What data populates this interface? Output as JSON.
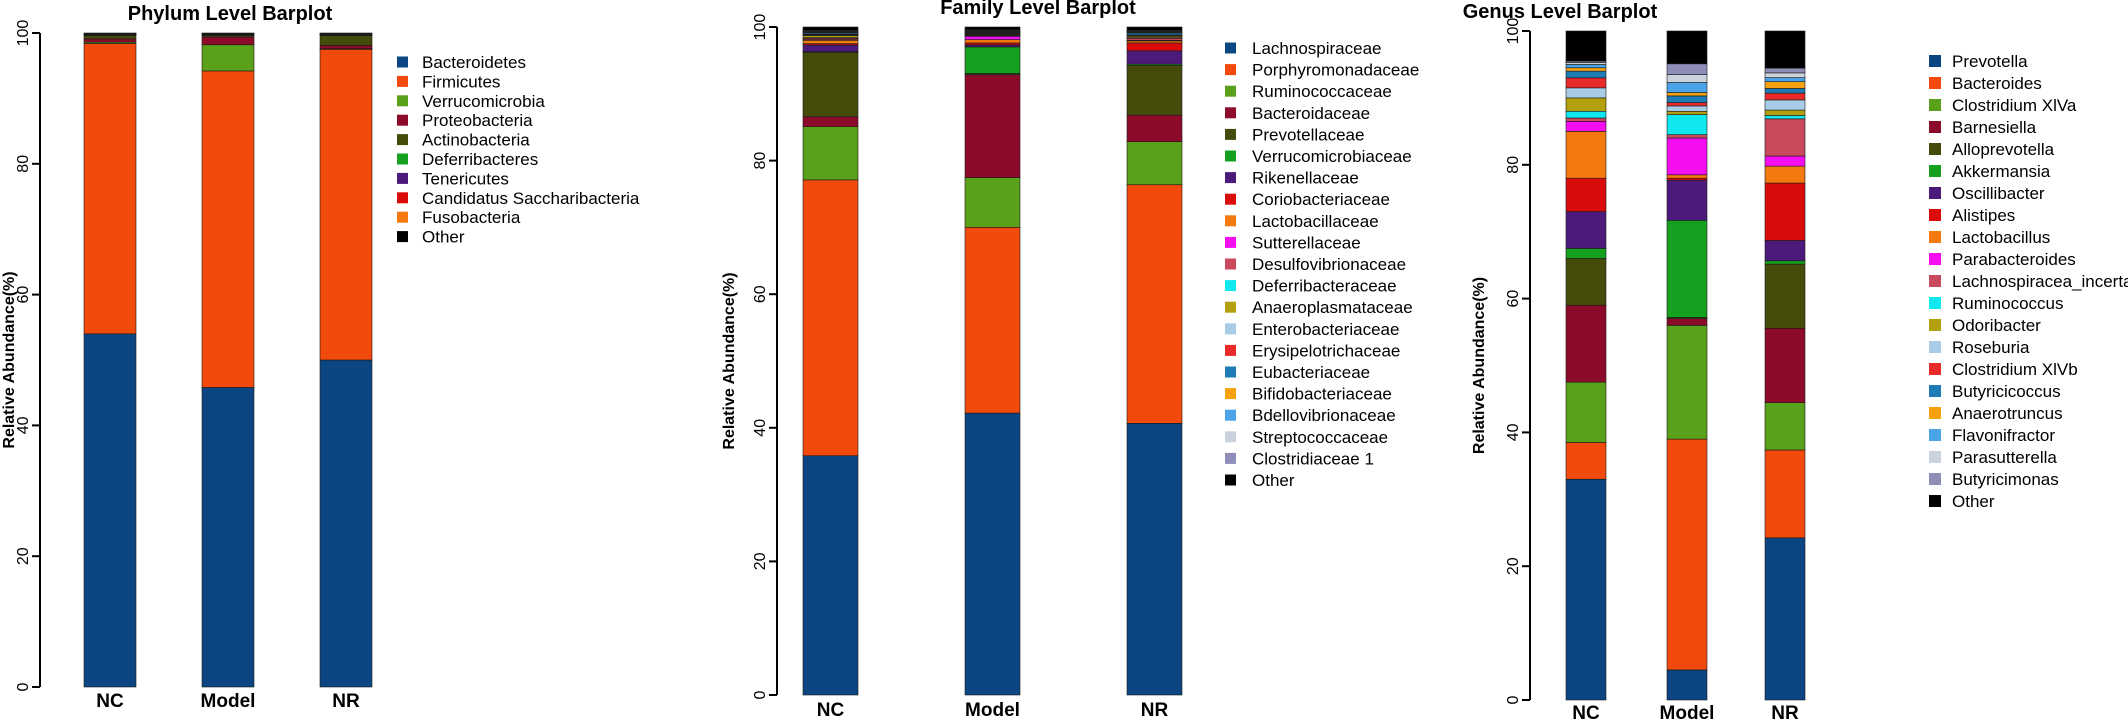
{
  "chart_data": [
    {
      "type": "bar",
      "stacked": true,
      "title": "Phylum Level Barplot",
      "ylabel": "Relative Abundance(%)",
      "ylim": [
        0,
        100
      ],
      "yticks": [
        0,
        20,
        40,
        60,
        80,
        100
      ],
      "categories": [
        "NC",
        "Model",
        "NR"
      ],
      "legend_position": "right",
      "series": [
        {
          "name": "Bacteroidetes",
          "color": "#0b4682",
          "values": [
            54.0,
            45.8,
            50.0
          ]
        },
        {
          "name": "Firmicutes",
          "color": "#f24a0c",
          "values": [
            44.4,
            48.4,
            47.5
          ]
        },
        {
          "name": "Verrucomicrobia",
          "color": "#5aa11b",
          "values": [
            0.2,
            4.0,
            0.1
          ]
        },
        {
          "name": "Proteobacteria",
          "color": "#8c0b2a",
          "values": [
            0.5,
            1.2,
            0.5
          ]
        },
        {
          "name": "Actinobacteria",
          "color": "#454c0b",
          "values": [
            0.5,
            0.2,
            1.5
          ]
        },
        {
          "name": "Deferribacteres",
          "color": "#16a01f",
          "values": [
            0.1,
            0.1,
            0.1
          ]
        },
        {
          "name": "Tenericutes",
          "color": "#4b1a7a",
          "values": [
            0.1,
            0.1,
            0.1
          ]
        },
        {
          "name": "Candidatus Saccharibacteria",
          "color": "#d90b0b",
          "values": [
            0.1,
            0.1,
            0.1
          ]
        },
        {
          "name": "Fusobacteria",
          "color": "#f47a10",
          "values": [
            0.05,
            0.05,
            0.05
          ]
        },
        {
          "name": "Other",
          "color": "#000000",
          "values": [
            0.05,
            0.05,
            0.05
          ]
        }
      ]
    },
    {
      "type": "bar",
      "stacked": true,
      "title": "Family Level Barplot",
      "ylabel": "Relative Abundance(%)",
      "ylim": [
        0,
        100
      ],
      "yticks": [
        0,
        20,
        40,
        60,
        80,
        100
      ],
      "categories": [
        "NC",
        "Model",
        "NR"
      ],
      "legend_position": "right",
      "series": [
        {
          "name": "Lachnospiraceae",
          "color": "#0b4682",
          "values": [
            36.0,
            42.5,
            41.0
          ]
        },
        {
          "name": "Porphyromonadaceae",
          "color": "#f24a0c",
          "values": [
            41.5,
            28.0,
            36.0
          ]
        },
        {
          "name": "Ruminococcaceae",
          "color": "#5aa11b",
          "values": [
            8.0,
            7.5,
            6.5
          ]
        },
        {
          "name": "Bacteroidaceae",
          "color": "#8c0b2a",
          "values": [
            1.5,
            15.5,
            4.0
          ]
        },
        {
          "name": "Prevotellaceae",
          "color": "#454c0b",
          "values": [
            9.7,
            0.2,
            7.5
          ]
        },
        {
          "name": "Verrucomicrobiaceae",
          "color": "#16a01f",
          "values": [
            0.1,
            4.0,
            0.2
          ]
        },
        {
          "name": "Rikenellaceae",
          "color": "#4b1a7a",
          "values": [
            1.0,
            0.3,
            2.0
          ]
        },
        {
          "name": "Coriobacteriaceae",
          "color": "#d90b0b",
          "values": [
            0.2,
            0.3,
            1.2
          ]
        },
        {
          "name": "Lactobacillaceae",
          "color": "#f47a10",
          "values": [
            0.5,
            0.5,
            0.3
          ]
        },
        {
          "name": "Sutterellaceae",
          "color": "#f50ff0",
          "values": [
            0.1,
            0.5,
            0.1
          ]
        },
        {
          "name": "Desulfovibrionaceae",
          "color": "#c94a5d",
          "values": [
            0.2,
            0.1,
            0.3
          ]
        },
        {
          "name": "Deferribacteraceae",
          "color": "#10e8ef",
          "values": [
            0.1,
            0.1,
            0.1
          ]
        },
        {
          "name": "Anaeroplasmataceae",
          "color": "#b3a00e",
          "values": [
            0.3,
            0.1,
            0.2
          ]
        },
        {
          "name": "Enterobacteriaceae",
          "color": "#a8cce8",
          "values": [
            0.1,
            0.1,
            0.1
          ]
        },
        {
          "name": "Erysipelotrichaceae",
          "color": "#e82a2a",
          "values": [
            0.1,
            0.1,
            0.1
          ]
        },
        {
          "name": "Eubacteriaceae",
          "color": "#1d7bb5",
          "values": [
            0.2,
            0.1,
            0.3
          ]
        },
        {
          "name": "Bifidobacteriaceae",
          "color": "#f7a10e",
          "values": [
            0.1,
            0.1,
            0.1
          ]
        },
        {
          "name": "Bdellovibrionaceae",
          "color": "#4ba3e8",
          "values": [
            0.1,
            0.1,
            0.1
          ]
        },
        {
          "name": "Streptococcaceae",
          "color": "#c9d2dd",
          "values": [
            0.1,
            0.1,
            0.1
          ]
        },
        {
          "name": "Clostridiaceae 1",
          "color": "#8e8eb8",
          "values": [
            0.1,
            0.1,
            0.1
          ]
        },
        {
          "name": "Other",
          "color": "#000000",
          "values": [
            0.5,
            0.4,
            0.5
          ]
        }
      ]
    },
    {
      "type": "bar",
      "stacked": true,
      "title": "Genus Level Barplot",
      "ylabel": "Relative Abundance(%)",
      "ylim": [
        0,
        100
      ],
      "yticks": [
        0,
        20,
        40,
        60,
        80,
        100
      ],
      "categories": [
        "NC",
        "Model",
        "NR"
      ],
      "legend_position": "right",
      "series": [
        {
          "name": "Prevotella",
          "color": "#0b4682",
          "values": [
            33.0,
            4.5,
            24.0
          ]
        },
        {
          "name": "Bacteroides",
          "color": "#f24a0c",
          "values": [
            5.5,
            34.5,
            13.0
          ]
        },
        {
          "name": "Clostridium XlVa",
          "color": "#5aa11b",
          "values": [
            9.0,
            17.0,
            7.0
          ]
        },
        {
          "name": "Barnesiella",
          "color": "#8c0b2a",
          "values": [
            11.5,
            1.0,
            11.0
          ]
        },
        {
          "name": "Alloprevotella",
          "color": "#454c0b",
          "values": [
            7.0,
            0.2,
            9.5
          ]
        },
        {
          "name": "Akkermansia",
          "color": "#16a01f",
          "values": [
            1.5,
            14.5,
            0.5
          ]
        },
        {
          "name": "Oscillibacter",
          "color": "#4b1a7a",
          "values": [
            5.5,
            6.0,
            3.0
          ]
        },
        {
          "name": "Alistipes",
          "color": "#d90b0b",
          "values": [
            5.0,
            0.3,
            8.5
          ]
        },
        {
          "name": "Lactobacillus",
          "color": "#f47a10",
          "values": [
            7.0,
            0.5,
            2.5
          ]
        },
        {
          "name": "Parabacteroides",
          "color": "#f50ff0",
          "values": [
            1.5,
            5.5,
            1.5
          ]
        },
        {
          "name": "Lachnospiracea_incertae_sedis",
          "color": "#c94a5d",
          "values": [
            0.5,
            0.5,
            5.5
          ]
        },
        {
          "name": "Ruminococcus",
          "color": "#10e8ef",
          "values": [
            1.0,
            3.0,
            0.5
          ]
        },
        {
          "name": "Odoribacter",
          "color": "#b3a00e",
          "values": [
            2.0,
            0.5,
            0.8
          ]
        },
        {
          "name": "Roseburia",
          "color": "#a8cce8",
          "values": [
            1.5,
            0.8,
            1.5
          ]
        },
        {
          "name": "Clostridium XlVb",
          "color": "#e82a2a",
          "values": [
            1.5,
            0.5,
            1.0
          ]
        },
        {
          "name": "Butyricicoccus",
          "color": "#1d7bb5",
          "values": [
            1.0,
            1.0,
            0.7
          ]
        },
        {
          "name": "Anaerotruncus",
          "color": "#f7a10e",
          "values": [
            0.5,
            0.5,
            1.0
          ]
        },
        {
          "name": "Flavonifractor",
          "color": "#4ba3e8",
          "values": [
            0.5,
            1.5,
            0.6
          ]
        },
        {
          "name": "Parasutterella",
          "color": "#c9d2dd",
          "values": [
            0.3,
            1.2,
            0.7
          ]
        },
        {
          "name": "Butyricimonas",
          "color": "#8e8eb8",
          "values": [
            0.2,
            1.6,
            0.7
          ]
        },
        {
          "name": "Other",
          "color": "#000000",
          "values": [
            4.5,
            4.9,
            5.5
          ]
        }
      ]
    }
  ]
}
